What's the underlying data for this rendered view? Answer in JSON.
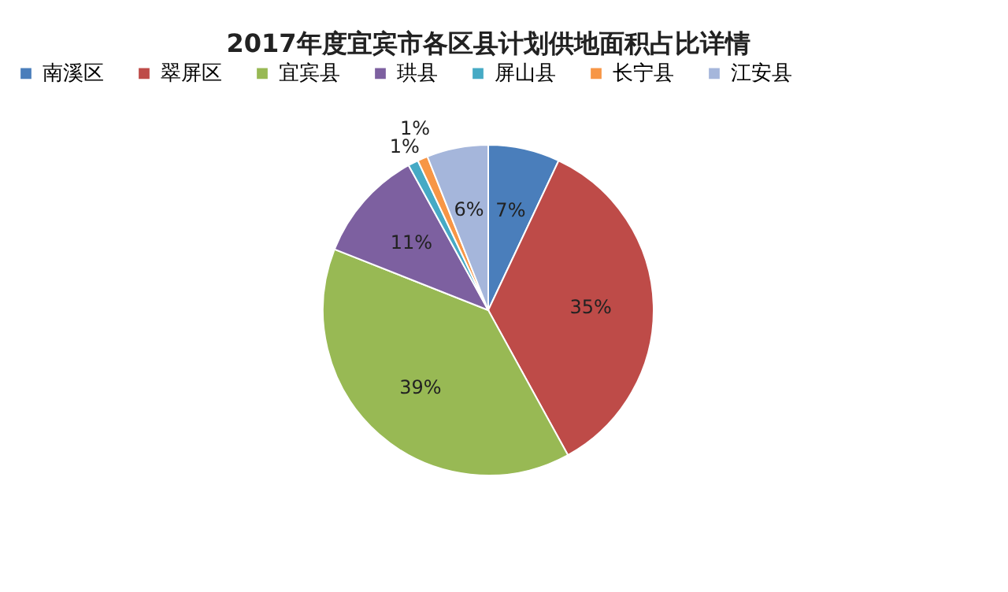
{
  "chart_data": {
    "type": "pie",
    "title": "2017年度宜宾市各区县计划供地面积占比详情",
    "categories": [
      "南溪区",
      "翠屏区",
      "宜宾县",
      "珙县",
      "屏山县",
      "长宁县",
      "江安县"
    ],
    "values": [
      7,
      35,
      39,
      11,
      1,
      1,
      6
    ],
    "colors": [
      "#4a7ebb",
      "#be4b48",
      "#98b954",
      "#7d60a0",
      "#46aac5",
      "#f79646",
      "#a5b6db"
    ],
    "value_labels": [
      "7%",
      "35%",
      "39%",
      "11%",
      "1%",
      "1%",
      "6%"
    ],
    "legend": "top"
  }
}
